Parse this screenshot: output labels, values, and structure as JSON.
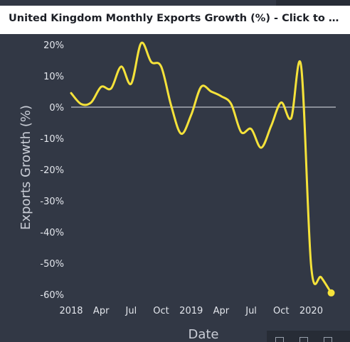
{
  "title": "United Kingdom Monthly Exports Growth (%) - Click to S...",
  "colors": {
    "background": "#323845",
    "line": "#f5e23a",
    "zero_line": "#e3e6ec",
    "text": "#e3e6ec"
  },
  "toolbar": {
    "icons": [
      "table-icon",
      "download-icon",
      "expand-icon"
    ]
  },
  "chart_data": {
    "type": "line",
    "title": "United Kingdom Monthly Exports Growth (%) - Click to S...",
    "xlabel": "Date",
    "ylabel": "Exports Growth (%)",
    "ylim": [
      -60,
      20
    ],
    "yticks": [
      "20%",
      "10%",
      "0%",
      "-10%",
      "-20%",
      "-30%",
      "-40%",
      "-50%",
      "-60%"
    ],
    "xticks": [
      "2018",
      "Apr",
      "Jul",
      "Oct",
      "2019",
      "Apr",
      "Jul",
      "Oct",
      "2020"
    ],
    "grid": false,
    "zero_line": true,
    "series": [
      {
        "color": "#f5e23a",
        "x": [
          "2018-01",
          "2018-02",
          "2018-03",
          "2018-04",
          "2018-05",
          "2018-06",
          "2018-07",
          "2018-08",
          "2018-09",
          "2018-10",
          "2018-11",
          "2018-12",
          "2019-01",
          "2019-02",
          "2019-03",
          "2019-04",
          "2019-05",
          "2019-06",
          "2019-07",
          "2019-08",
          "2019-09",
          "2019-10",
          "2019-11",
          "2019-12",
          "2020-01",
          "2020-02",
          "2020-03"
        ],
        "y": [
          4.5,
          1.0,
          1.5,
          6.5,
          6.0,
          13.0,
          7.5,
          20.5,
          14.5,
          13.0,
          0.5,
          -8.5,
          -2.5,
          6.5,
          5.0,
          3.5,
          1.0,
          -8.0,
          -7.0,
          -13.0,
          -6.0,
          1.5,
          -3.5,
          13.0,
          -51.0,
          -54.5,
          -59.5
        ]
      }
    ]
  }
}
